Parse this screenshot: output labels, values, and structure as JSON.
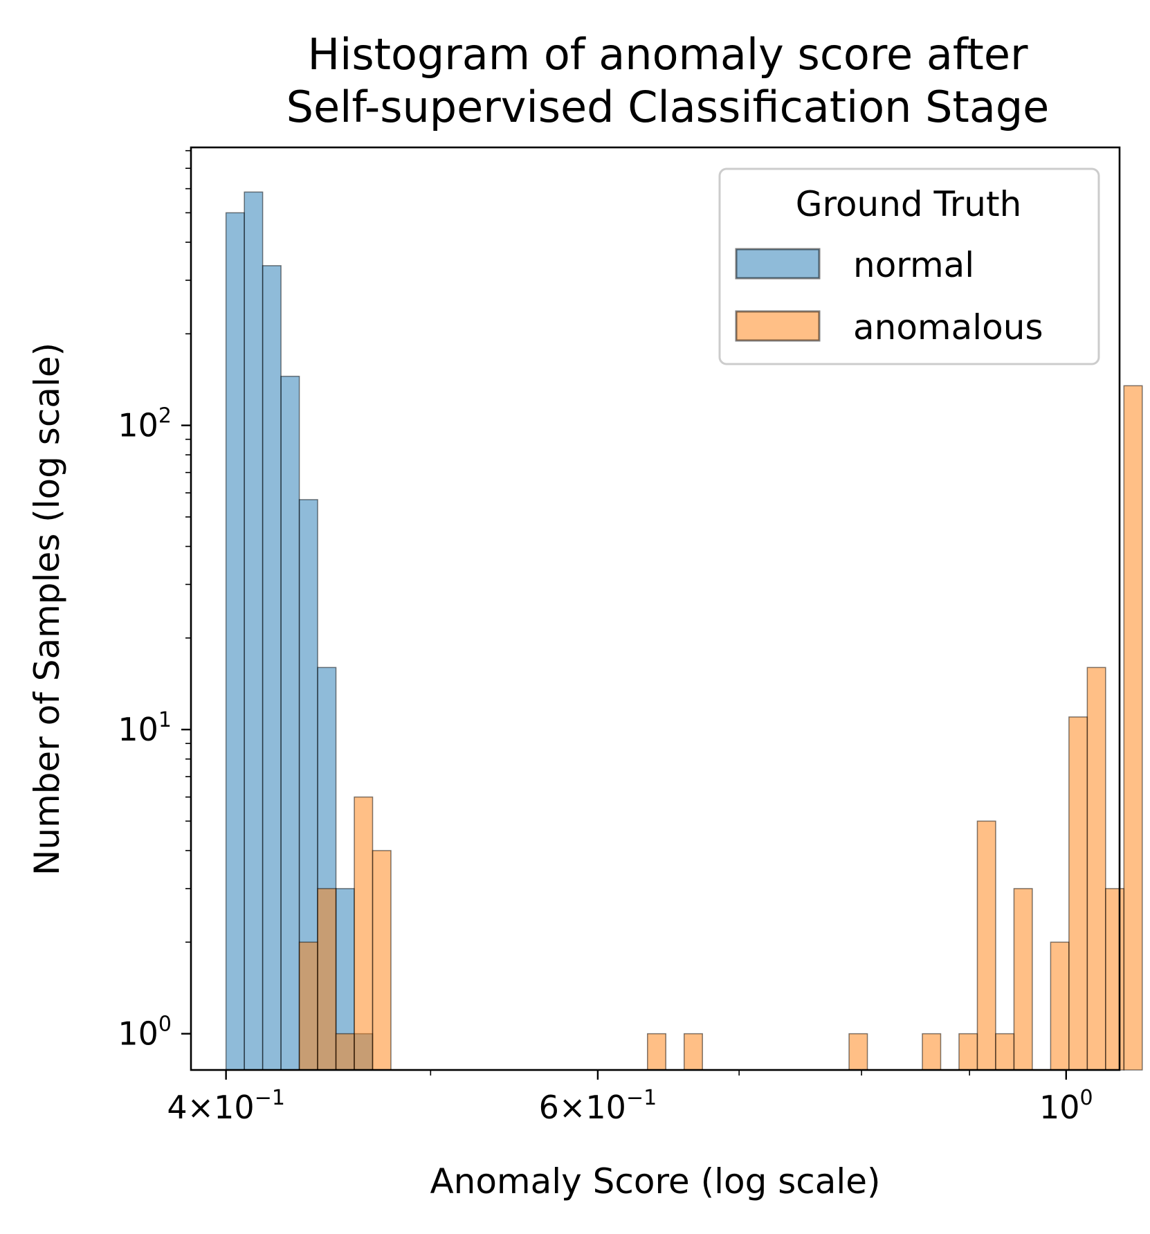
{
  "chart_data": {
    "type": "histogram",
    "title_lines": [
      "Histogram of anomaly score after",
      "Self-supervised Classification Stage"
    ],
    "xlabel": "Anomaly Score (log scale)",
    "ylabel": "Number of Samples (log scale)",
    "xscale": "log",
    "yscale": "log",
    "xlim": [
      0.385,
      1.06
    ],
    "ylim": [
      0.76,
      820
    ],
    "x_ticks": [
      {
        "value": 0.4,
        "mant": "4",
        "base": "×10",
        "exp": "−1"
      },
      {
        "value": 0.6,
        "mant": "6",
        "base": "×10",
        "exp": "−1"
      },
      {
        "value": 1.0,
        "mant": "",
        "base": "10",
        "exp": "0"
      }
    ],
    "x_minor_ticks": [
      0.5,
      0.7,
      0.8,
      0.9
    ],
    "y_ticks": [
      {
        "value": 1,
        "base": "10",
        "exp": "0"
      },
      {
        "value": 10,
        "base": "10",
        "exp": "1"
      },
      {
        "value": 100,
        "base": "10",
        "exp": "2"
      }
    ],
    "y_minor_ticks": [
      2,
      3,
      4,
      5,
      6,
      7,
      8,
      9,
      20,
      30,
      40,
      50,
      60,
      70,
      80,
      90,
      200,
      300,
      400,
      500,
      600,
      700,
      800
    ],
    "bin_width_log10": 0.00868,
    "bin_start": 0.4,
    "legend": {
      "title": "Ground Truth",
      "position": "upper right",
      "entries": [
        {
          "label": "normal",
          "color": "#1f77b4"
        },
        {
          "label": "anomalous",
          "color": "#ff7f0e"
        }
      ]
    },
    "series": [
      {
        "name": "normal",
        "color": "#1f77b4",
        "alpha": 0.5,
        "bins": [
          {
            "bin": 0,
            "count": 500
          },
          {
            "bin": 1,
            "count": 585
          },
          {
            "bin": 2,
            "count": 335
          },
          {
            "bin": 3,
            "count": 145
          },
          {
            "bin": 4,
            "count": 57
          },
          {
            "bin": 5,
            "count": 16
          },
          {
            "bin": 6,
            "count": 3
          },
          {
            "bin": 7,
            "count": 1
          }
        ]
      },
      {
        "name": "anomalous",
        "color": "#ff7f0e",
        "alpha": 0.5,
        "bins": [
          {
            "bin": 4,
            "count": 2
          },
          {
            "bin": 5,
            "count": 3
          },
          {
            "bin": 6,
            "count": 1
          },
          {
            "bin": 7,
            "count": 6
          },
          {
            "bin": 8,
            "count": 4
          },
          {
            "bin": 23,
            "count": 1
          },
          {
            "bin": 25,
            "count": 1
          },
          {
            "bin": 34,
            "count": 1
          },
          {
            "bin": 38,
            "count": 1
          },
          {
            "bin": 40,
            "count": 1
          },
          {
            "bin": 41,
            "count": 5
          },
          {
            "bin": 42,
            "count": 1
          },
          {
            "bin": 43,
            "count": 3
          },
          {
            "bin": 45,
            "count": 2
          },
          {
            "bin": 46,
            "count": 11
          },
          {
            "bin": 47,
            "count": 16
          },
          {
            "bin": 48,
            "count": 3
          },
          {
            "bin": 49,
            "count": 135
          }
        ]
      }
    ]
  }
}
